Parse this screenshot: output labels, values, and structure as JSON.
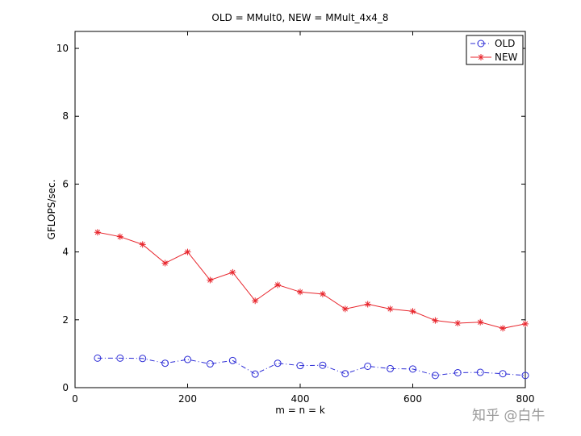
{
  "chart_data": {
    "type": "line",
    "title": "OLD = MMult0, NEW = MMult_4x4_8",
    "xlabel": "m = n = k",
    "ylabel": "GFLOPS/sec.",
    "xlim": [
      0,
      800
    ],
    "ylim": [
      0,
      10.5
    ],
    "xticks": [
      "0",
      "200",
      "400",
      "600",
      "800"
    ],
    "yticks": [
      "0",
      "2",
      "4",
      "6",
      "8",
      "10"
    ],
    "x": [
      40,
      80,
      120,
      160,
      200,
      240,
      280,
      320,
      360,
      400,
      440,
      480,
      520,
      560,
      600,
      640,
      680,
      720,
      760,
      800
    ],
    "series": [
      {
        "name": "OLD",
        "color": "#2b2bd6",
        "marker": "circle",
        "line": "dash-dot",
        "values": [
          0.87,
          0.87,
          0.86,
          0.72,
          0.83,
          0.7,
          0.8,
          0.4,
          0.72,
          0.65,
          0.66,
          0.41,
          0.63,
          0.56,
          0.55,
          0.36,
          0.44,
          0.45,
          0.41,
          0.36
        ]
      },
      {
        "name": "NEW",
        "color": "#e8262d",
        "marker": "star",
        "line": "solid",
        "values": [
          4.58,
          4.45,
          4.22,
          3.67,
          4.0,
          3.17,
          3.4,
          2.56,
          3.03,
          2.82,
          2.76,
          2.32,
          2.46,
          2.32,
          2.25,
          1.98,
          1.9,
          1.93,
          1.75,
          1.88
        ]
      }
    ],
    "legend": "top-right"
  },
  "watermark": {
    "text": "知乎 @白牛"
  }
}
